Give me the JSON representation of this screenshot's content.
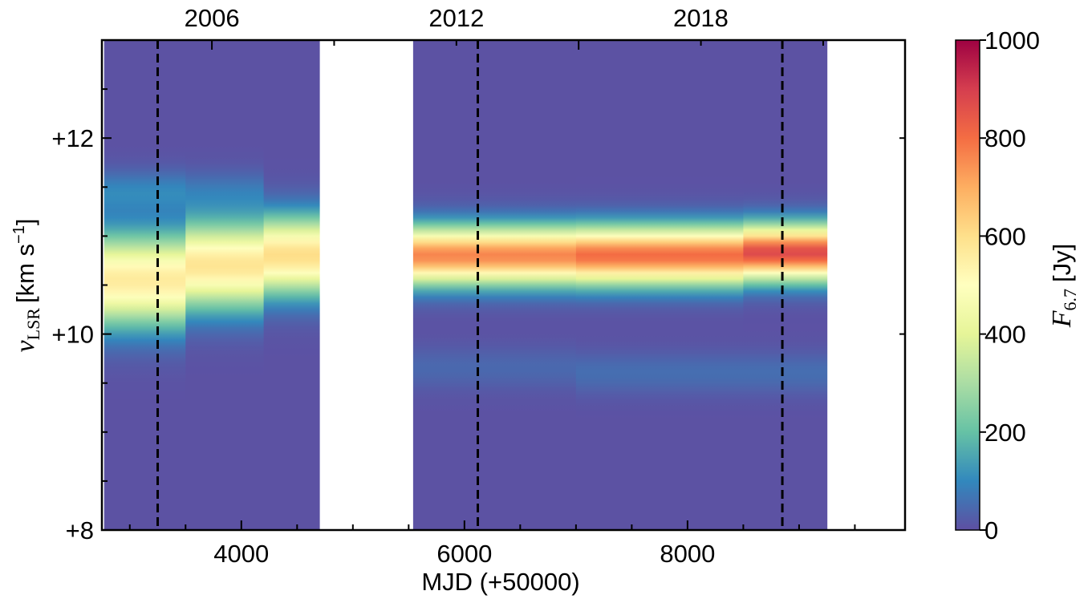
{
  "chart_data": {
    "type": "heatmap",
    "xlabel": "MJD (+50000)",
    "ylabel_symbol": "v",
    "ylabel_subscript": "LSR",
    "ylabel_units": "[km s",
    "ylabel_exponent": "−1",
    "ylabel_close": "]",
    "colorbar_label_symbol": "F",
    "colorbar_label_subscript": "6.7",
    "colorbar_label_units": "[Jy]",
    "xlim": [
      2750,
      9950
    ],
    "ylim": [
      8,
      13
    ],
    "x_ticks": [
      {
        "value": 4000,
        "label": "4000"
      },
      {
        "value": 6000,
        "label": "6000"
      },
      {
        "value": 8000,
        "label": "8000"
      }
    ],
    "y_ticks": [
      {
        "value": 8,
        "label": "+8"
      },
      {
        "value": 10,
        "label": "+10"
      },
      {
        "value": 12,
        "label": "+12"
      }
    ],
    "top_axis_ticks": [
      {
        "value": 3736,
        "label": "2006"
      },
      {
        "value": 5928,
        "label": "2012"
      },
      {
        "value": 8119,
        "label": "2018"
      }
    ],
    "colorbar": {
      "min": 0,
      "max": 1000,
      "ticks": [
        {
          "value": 0,
          "label": "0"
        },
        {
          "value": 200,
          "label": "200"
        },
        {
          "value": 400,
          "label": "400"
        },
        {
          "value": 600,
          "label": "600"
        },
        {
          "value": 800,
          "label": "800"
        },
        {
          "value": 1000,
          "label": "1000"
        }
      ],
      "colormap": "Spectral_r"
    },
    "data_segments": [
      [
        2770,
        4700
      ],
      [
        5540,
        9250
      ]
    ],
    "dashed_lines_x": [
      3250,
      6120,
      8850
    ],
    "profiles": [
      {
        "x_start": 2770,
        "x_end": 3500,
        "components": [
          {
            "v": 10.55,
            "sigma": 0.32,
            "peak": 560
          },
          {
            "v": 11.45,
            "sigma": 0.15,
            "peak": 90
          }
        ]
      },
      {
        "x_start": 3500,
        "x_end": 4200,
        "components": [
          {
            "v": 10.7,
            "sigma": 0.3,
            "peak": 580
          },
          {
            "v": 11.45,
            "sigma": 0.15,
            "peak": 60
          }
        ]
      },
      {
        "x_start": 4200,
        "x_end": 4700,
        "components": [
          {
            "v": 10.8,
            "sigma": 0.27,
            "peak": 600
          }
        ]
      },
      {
        "x_start": 5540,
        "x_end": 7000,
        "components": [
          {
            "v": 10.8,
            "sigma": 0.2,
            "peak": 760
          },
          {
            "v": 9.65,
            "sigma": 0.15,
            "peak": 40
          }
        ]
      },
      {
        "x_start": 7000,
        "x_end": 8500,
        "components": [
          {
            "v": 10.8,
            "sigma": 0.2,
            "peak": 800
          },
          {
            "v": 9.6,
            "sigma": 0.15,
            "peak": 50
          }
        ]
      },
      {
        "x_start": 8500,
        "x_end": 9250,
        "components": [
          {
            "v": 10.83,
            "sigma": 0.19,
            "peak": 870
          },
          {
            "v": 9.6,
            "sigma": 0.15,
            "peak": 50
          }
        ]
      }
    ],
    "grid": false,
    "legend": "none"
  }
}
